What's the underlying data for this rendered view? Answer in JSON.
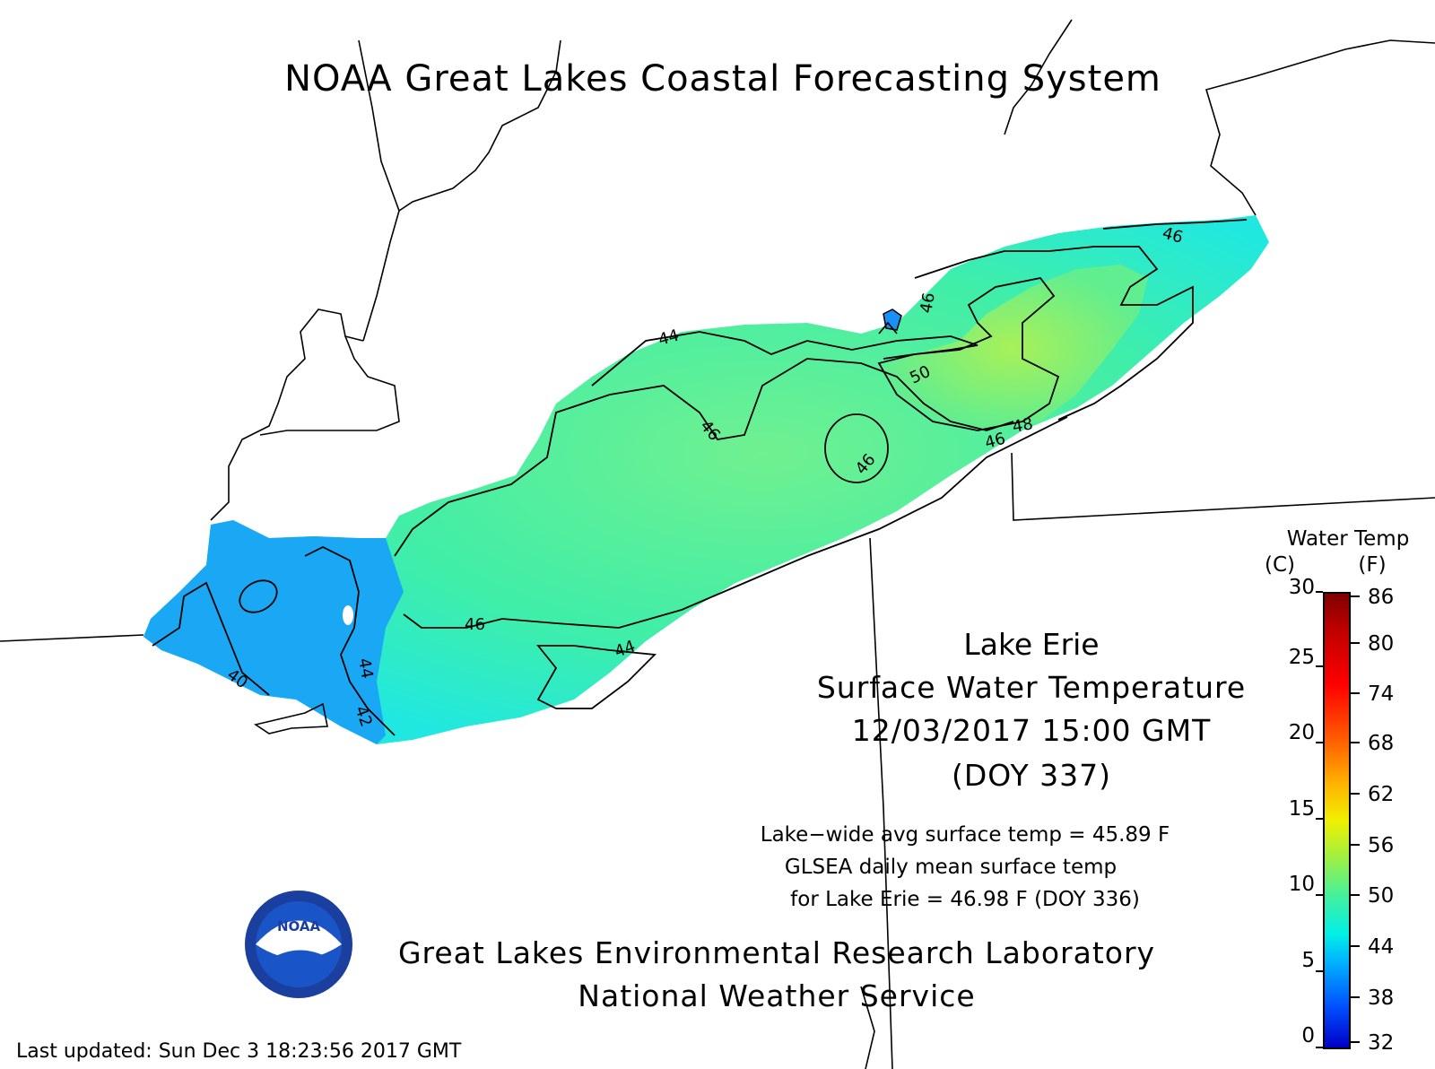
{
  "title": "NOAA Great Lakes Coastal Forecasting System",
  "lake": "Lake Erie",
  "product": "Surface Water Temperature",
  "valid_time": "12/03/2017 15:00 GMT",
  "doy": "(DOY 337)",
  "stats": {
    "line1": "Lake−wide avg surface temp = 45.89 F",
    "line2": "GLSEA daily mean surface temp",
    "line3": "for Lake Erie =  46.98 F (DOY 336)"
  },
  "lab": {
    "line1": "Great Lakes Environmental Research Laboratory",
    "line2": "National Weather Service"
  },
  "logo_text": "NOAA",
  "last_updated": "Last updated: Sun Dec  3 18:23:56 2017 GMT",
  "legend": {
    "title": "Water Temp",
    "unit_c": "(C)",
    "unit_f": "(F)",
    "ticks_c": [
      "30",
      "25",
      "20",
      "15",
      "10",
      "5",
      "0"
    ],
    "ticks_f": [
      "86",
      "80",
      "74",
      "68",
      "62",
      "56",
      "50",
      "44",
      "38",
      "32"
    ],
    "colors": [
      "#0000c8",
      "#0050ff",
      "#00b4ff",
      "#00f0e6",
      "#40f0a0",
      "#a0f040",
      "#f0f000",
      "#ffb400",
      "#ff6400",
      "#ff0000",
      "#c00000",
      "#800000"
    ]
  },
  "contour_labels": [
    "44",
    "46",
    "46",
    "46",
    "46",
    "46",
    "46",
    "48",
    "50",
    "40",
    "42",
    "44",
    "44",
    "46"
  ]
}
